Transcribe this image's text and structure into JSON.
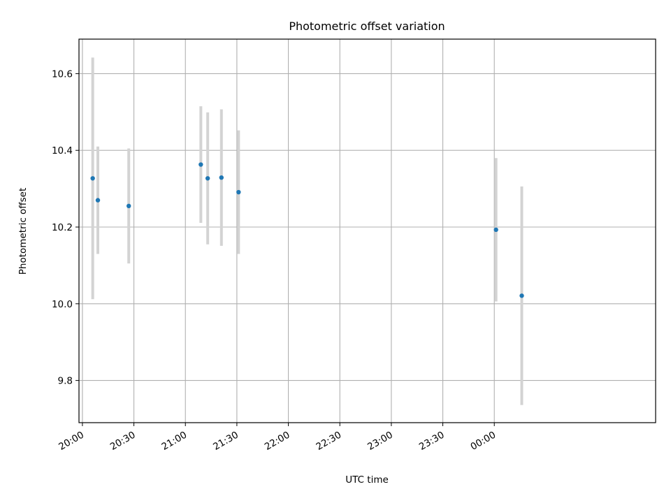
{
  "chart_data": {
    "type": "scatter",
    "title": "Photometric offset variation",
    "xlabel": "UTC time",
    "ylabel": "Photometric offset",
    "x_unit": "HH:MM UTC",
    "xlim": [
      "19:58",
      "01:34"
    ],
    "ylim": [
      9.69,
      10.69
    ],
    "grid": true,
    "x_ticks": [
      "20:00",
      "20:30",
      "21:00",
      "21:30",
      "22:00",
      "22:30",
      "23:00",
      "23:30",
      "00:00"
    ],
    "y_ticks": [
      "9.8",
      "10.0",
      "10.2",
      "10.4",
      "10.6"
    ],
    "y_tick_values": [
      9.8,
      10.0,
      10.2,
      10.4,
      10.6
    ],
    "point_color": "#1f77b4",
    "errorbar_color": "#d3d3d3",
    "points": [
      {
        "x": "20:06",
        "y": 10.327,
        "err": 0.315
      },
      {
        "x": "20:09",
        "y": 10.27,
        "err": 0.14
      },
      {
        "x": "20:27",
        "y": 10.255,
        "err": 0.15
      },
      {
        "x": "21:09",
        "y": 10.363,
        "err": 0.152
      },
      {
        "x": "21:13",
        "y": 10.327,
        "err": 0.172
      },
      {
        "x": "21:21",
        "y": 10.329,
        "err": 0.178
      },
      {
        "x": "21:31",
        "y": 10.291,
        "err": 0.161
      },
      {
        "x": "00:01",
        "y": 10.193,
        "err": 0.187
      },
      {
        "x": "00:16",
        "y": 10.021,
        "err": 0.285
      }
    ]
  }
}
